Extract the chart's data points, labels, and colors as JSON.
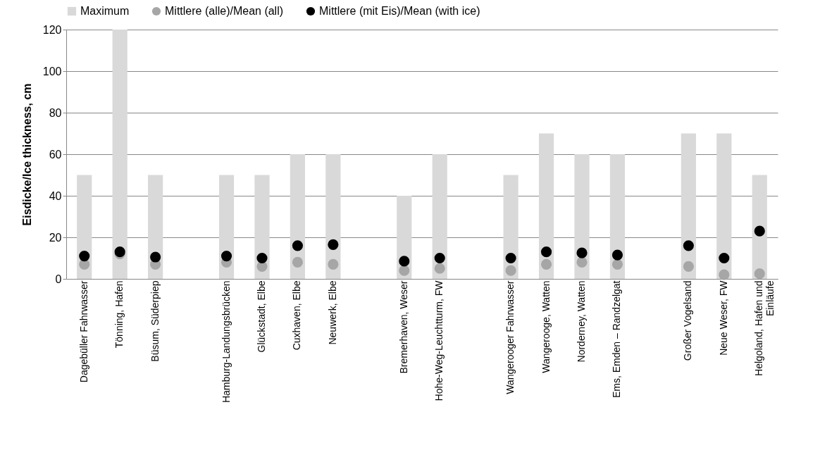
{
  "chart_data": {
    "type": "bar",
    "ylabel": "Eisdicke/Ice thickness, cm",
    "categories": [
      "Dagebüller Fahrwasser",
      "Tönning, Hafen",
      "Büsum, Süderpiep",
      null,
      "Hamburg-Landungsbrücken",
      "Glückstadt, Elbe",
      "Cuxhaven, Elbe",
      "Neuwerk, Elbe",
      null,
      "Bremerhaven, Weser",
      "Hohe-Weg-Leuchtturm, FW",
      null,
      "Wangerooger Fahrwasser",
      "Wangerooge, Watten",
      "Norderney, Watten",
      "Ems, Emden – Randzelgat",
      null,
      "Großer Vogelsand",
      "Neue Weser, FW",
      "Helgoland, Hafen und Einläufe"
    ],
    "series": [
      {
        "name": "Maximum",
        "color": "#d9d9d9",
        "values": [
          50,
          120,
          50,
          null,
          50,
          50,
          60,
          60,
          null,
          40,
          60,
          null,
          50,
          70,
          60,
          60,
          null,
          70,
          70,
          50
        ]
      },
      {
        "name": "Mittlere (alle)/Mean (all)",
        "type": "scatter",
        "color": "#a6a6a6",
        "values": [
          7,
          12,
          7,
          null,
          8,
          6,
          8,
          7,
          null,
          4,
          5,
          null,
          4,
          7,
          8,
          7,
          null,
          6,
          2,
          2.5
        ]
      },
      {
        "name": "Mittlere (mit Eis)/Mean (with ice)",
        "type": "scatter",
        "color": "#000000",
        "values": [
          11,
          13,
          10.5,
          null,
          11,
          10,
          16,
          16.5,
          null,
          8.5,
          10,
          null,
          10,
          13,
          12.5,
          11.5,
          null,
          16,
          10,
          23
        ]
      }
    ],
    "ylim": [
      0,
      120
    ],
    "yticks": [
      0,
      20,
      40,
      60,
      80,
      100,
      120
    ],
    "grid": "y",
    "legend": "top",
    "marker": "circle"
  }
}
